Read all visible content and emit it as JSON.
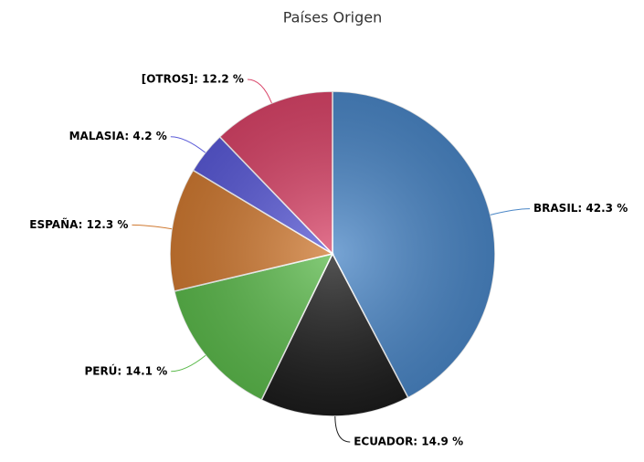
{
  "chart_data": {
    "type": "pie",
    "title": "Países Origen",
    "values": [
      42.3,
      14.9,
      14.1,
      12.3,
      4.2,
      12.2
    ],
    "value_labels": [
      "BRASIL: 42.3 %",
      "ECUADOR: 14.9 %",
      "PERÚ: 14.1 %",
      "ESPAÑA: 12.3 %",
      "MALASIA: 4.2 %",
      "[OTROS]: 12.2 %"
    ],
    "colors": [
      "#4a86c6",
      "#1c1c1c",
      "#5cba4c",
      "#d07a32",
      "#5a5ad8",
      "#d94468"
    ]
  }
}
